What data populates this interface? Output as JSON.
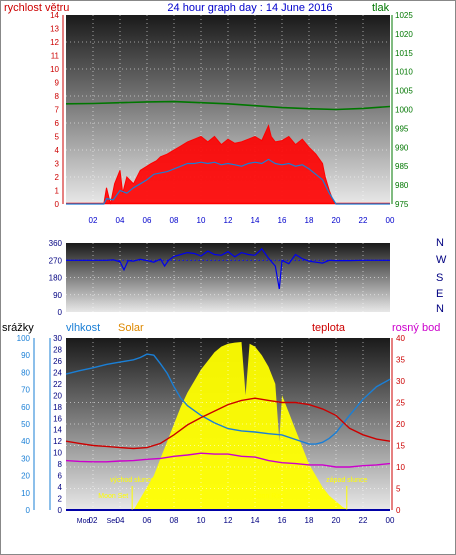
{
  "header": {
    "left_label": "rychlost větru",
    "title": "24 hour graph day : 14 June 2016",
    "right_label": "tlak"
  },
  "colors": {
    "wind_speed": "#ff0000",
    "wind_gust_fill": "#ff0000",
    "wind_avg": "#1a7fd6",
    "pressure": "#007700",
    "direction": "#0000ee",
    "humidity": "#1a7fd6",
    "temperature": "#cc0000",
    "dew_point": "#cc00cc",
    "solar": "#ffff00",
    "rain": "#0000cc",
    "rain_axis": "#1a7fd6",
    "left_axis_wind": "#cc0000",
    "right_axis_pressure": "#007700",
    "direction_axis": "#000080",
    "solar_label": "#dd8800",
    "temp_axis": "#cc0000",
    "dew_axis": "#cc00cc"
  },
  "chart_data": [
    {
      "type": "line",
      "name": "wind-pressure",
      "xlabel": "",
      "x_ticks": [
        "02",
        "04",
        "06",
        "08",
        "10",
        "12",
        "14",
        "16",
        "18",
        "20",
        "22",
        "00"
      ],
      "y_left": {
        "label": "rychlost větru",
        "ylim": [
          0,
          14
        ],
        "ticks": [
          0,
          1,
          2,
          3,
          4,
          5,
          6,
          7,
          8,
          9,
          10,
          11,
          12,
          13,
          14
        ]
      },
      "y_right": {
        "label": "tlak",
        "ylim": [
          975,
          1025
        ],
        "ticks": [
          975,
          980,
          985,
          990,
          995,
          1000,
          1005,
          1010,
          1015,
          1020,
          1025
        ]
      },
      "series": [
        {
          "name": "wind gust",
          "hours": [
            0,
            1,
            2,
            2.8,
            3,
            3.3,
            3.6,
            4,
            4.2,
            4.5,
            5,
            5.5,
            6,
            6.3,
            6.7,
            7,
            7.5,
            8,
            8.5,
            9,
            9.5,
            10,
            10.5,
            11,
            11.5,
            12,
            12.5,
            13,
            13.5,
            14,
            14.5,
            15,
            15.2,
            15.5,
            16,
            16.5,
            17,
            17.5,
            18,
            18.5,
            19,
            19.2,
            19.5,
            19.8,
            20,
            21,
            22,
            23,
            24
          ],
          "values": [
            0,
            0,
            0,
            0,
            1.2,
            0,
            1.5,
            2.5,
            0.8,
            2,
            1.5,
            2.5,
            2.8,
            3,
            3.2,
            3.5,
            3.7,
            4,
            4.3,
            4.6,
            4.8,
            5,
            4.6,
            5,
            4.4,
            4.8,
            4.5,
            4.6,
            4.8,
            5,
            4.7,
            5.8,
            5,
            4.6,
            4.7,
            5,
            4.4,
            4.8,
            4.2,
            3.7,
            3,
            2,
            1,
            0.2,
            0,
            0,
            0,
            0,
            0
          ]
        },
        {
          "name": "wind average",
          "hours": [
            0,
            1,
            2,
            2.8,
            3,
            3.5,
            4,
            4.5,
            5,
            5.5,
            6,
            6.5,
            7,
            7.5,
            8,
            8.5,
            9,
            9.5,
            10,
            10.5,
            11,
            11.5,
            12,
            12.5,
            13,
            13.5,
            14,
            14.5,
            15,
            15.5,
            16,
            16.5,
            17,
            17.5,
            18,
            18.5,
            19,
            19.5,
            20,
            21,
            22,
            23,
            24
          ],
          "values": [
            0,
            0,
            0,
            0,
            0.4,
            0.3,
            1,
            0.8,
            1.2,
            1.5,
            1.8,
            2.2,
            2.3,
            2.4,
            2.6,
            2.8,
            3,
            3,
            3.1,
            3,
            3.1,
            2.9,
            3,
            2.9,
            2.8,
            3,
            3.1,
            3,
            3.3,
            3,
            2.9,
            3,
            2.8,
            2.9,
            2.6,
            2.2,
            1.8,
            0.8,
            0,
            0,
            0,
            0,
            0
          ]
        },
        {
          "name": "pressure",
          "axis": "right",
          "hours": [
            0,
            2,
            4,
            6,
            8,
            10,
            12,
            14,
            16,
            18,
            20,
            22,
            24
          ],
          "values": [
            1001.5,
            1001.6,
            1001.8,
            1002,
            1002.1,
            1001.8,
            1001.5,
            1001,
            1000.5,
            1000.2,
            1000,
            1000.3,
            1000.8
          ]
        }
      ]
    },
    {
      "type": "scatter",
      "name": "wind-direction",
      "y_ticks": [
        0,
        90,
        180,
        270,
        360
      ],
      "ylim": [
        0,
        360
      ],
      "compass_labels": [
        "N",
        "W",
        "S",
        "E",
        "N"
      ],
      "series": [
        {
          "name": "direction",
          "hours": [
            0,
            1,
            2,
            3,
            3.5,
            4,
            4.3,
            4.6,
            5,
            5.5,
            6,
            6.5,
            7,
            7.3,
            7.6,
            8,
            8.5,
            9,
            9.5,
            10,
            10.5,
            11,
            11.5,
            12,
            12.5,
            13,
            13.5,
            14,
            14.5,
            15,
            15.5,
            15.8,
            16,
            16.5,
            17,
            17.5,
            18,
            18.5,
            19,
            19.5,
            20,
            21,
            22,
            23,
            24
          ],
          "values": [
            270,
            270,
            270,
            270,
            272,
            262,
            220,
            268,
            265,
            275,
            268,
            260,
            276,
            240,
            270,
            290,
            300,
            310,
            305,
            292,
            318,
            300,
            296,
            315,
            288,
            310,
            300,
            296,
            330,
            280,
            240,
            120,
            270,
            252,
            300,
            278,
            265,
            260,
            255,
            270,
            268,
            268,
            270,
            270,
            270
          ]
        }
      ]
    },
    {
      "type": "line",
      "name": "humidity-temperature-solar",
      "header_labels": {
        "rain": "srážky",
        "humidity": "vlhkost",
        "solar": "Solar",
        "temperature": "teplota",
        "dew_point": "rosný bod"
      },
      "axes": {
        "rain_ticks": [
          0,
          10,
          20,
          30,
          40,
          50,
          60,
          70,
          80,
          90,
          100
        ],
        "humidity_ticks": [
          0,
          2,
          4,
          6,
          8,
          10,
          12,
          14,
          16,
          18,
          20,
          22,
          24,
          26,
          28,
          30
        ],
        "temperature_ticks": [
          0,
          5,
          10,
          15,
          20,
          25,
          30,
          35,
          40
        ],
        "rain_ylim": [
          0,
          100
        ],
        "humidity_ylim": [
          0,
          30
        ],
        "temperature_ylim": [
          0,
          40
        ]
      },
      "annotations": [
        {
          "text": "východ slunce",
          "hour": 4.9
        },
        {
          "text": "západ slunce",
          "hour": 20.8
        },
        {
          "text": "Moon Set",
          "hour": 3.5
        },
        {
          "text": "Moon Rise",
          "hour": 15
        },
        {
          "text": "Mod",
          "hour": 1.3
        },
        {
          "text": "Set",
          "hour": 3.4
        }
      ],
      "series": [
        {
          "name": "humidity",
          "hours": [
            0,
            1,
            2,
            3,
            4,
            5,
            5.5,
            6,
            6.5,
            7,
            7.5,
            8,
            8.5,
            9,
            10,
            11,
            12,
            13,
            14,
            15,
            16,
            17,
            18,
            18.5,
            19,
            19.5,
            20,
            21,
            22,
            23,
            24
          ],
          "values": [
            23.7,
            24.3,
            24.8,
            25.4,
            25.8,
            26.2,
            26.6,
            27.2,
            27,
            25.5,
            23.8,
            21.5,
            19.5,
            18.2,
            16.5,
            15.2,
            14.2,
            13.8,
            13.6,
            13.3,
            13.1,
            12.3,
            11.5,
            11.5,
            11.8,
            12.5,
            13.5,
            16.5,
            19.3,
            21.5,
            22.8
          ]
        },
        {
          "name": "temperature",
          "hours": [
            0,
            1,
            2,
            3,
            4,
            5,
            6,
            7,
            8,
            9,
            10,
            11,
            12,
            13,
            14,
            15,
            16,
            17,
            18,
            19,
            20,
            21,
            22,
            23,
            24
          ],
          "values": [
            16,
            15.5,
            15,
            14.8,
            14.5,
            14.3,
            14.5,
            15.5,
            17.5,
            19.8,
            21.5,
            23,
            24.5,
            25.5,
            26,
            25.5,
            25,
            25,
            24.5,
            23.5,
            22,
            19,
            17.5,
            16.5,
            16
          ]
        },
        {
          "name": "dew point",
          "hours": [
            0,
            1,
            2,
            3,
            4,
            5,
            6,
            7,
            8,
            9,
            10,
            11,
            12,
            13,
            14,
            15,
            16,
            17,
            18,
            19,
            20,
            21,
            22,
            23,
            24
          ],
          "values": [
            11.5,
            11.3,
            11.2,
            11.2,
            11.4,
            11.5,
            11.8,
            12,
            12.5,
            12.8,
            13.2,
            13,
            13,
            12.5,
            12.3,
            11.5,
            11,
            10.8,
            10.5,
            10.5,
            10,
            10,
            10.3,
            10.5,
            10.8
          ]
        },
        {
          "name": "solar",
          "hours": [
            5,
            5.5,
            6,
            6.5,
            7,
            7.5,
            8,
            8.5,
            9,
            9.5,
            10,
            10.5,
            11,
            11.5,
            12,
            12.5,
            13,
            13.3,
            13.6,
            14,
            14.5,
            15,
            15.5,
            15.8,
            16,
            16.5,
            17,
            17.5,
            18,
            18.5,
            19,
            19.5,
            20,
            20.5,
            21
          ],
          "values": [
            0,
            2,
            4,
            6,
            9,
            12,
            15,
            18,
            20.5,
            22.5,
            24.5,
            26,
            27.5,
            28.5,
            29,
            29.2,
            29.3,
            20,
            29,
            28.5,
            27,
            25,
            22,
            12,
            20,
            17,
            14,
            11,
            8,
            6,
            4,
            2.5,
            1.5,
            0.5,
            0
          ]
        },
        {
          "name": "rain",
          "hours": [
            0,
            24
          ],
          "values": [
            0,
            0
          ]
        }
      ]
    }
  ]
}
